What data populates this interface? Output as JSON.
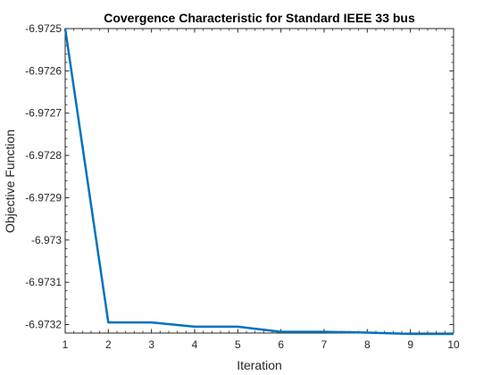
{
  "chart_data": {
    "type": "line",
    "title": "Covergence Characteristic for Standard IEEE  33 bus",
    "xlabel": "Iteration",
    "ylabel": "Objective Function",
    "xlim": [
      1,
      10
    ],
    "ylim": [
      -6.97322,
      -6.9725
    ],
    "x_ticks": [
      1,
      2,
      3,
      4,
      5,
      6,
      7,
      8,
      9,
      10
    ],
    "x_tick_labels": [
      "1",
      "2",
      "3",
      "4",
      "5",
      "6",
      "7",
      "8",
      "9",
      "10"
    ],
    "y_ticks": [
      -6.9725,
      -6.9726,
      -6.9727,
      -6.9728,
      -6.9729,
      -6.973,
      -6.9731,
      -6.9732
    ],
    "y_tick_labels": [
      "-6.9725",
      "-6.9726",
      "-6.9727",
      "-6.9728",
      "-6.9729",
      "-6.973",
      "-6.9731",
      "-6.9732"
    ],
    "grid": false,
    "box": true,
    "series": [
      {
        "color": "#0072BD",
        "x": [
          1,
          2,
          3,
          4,
          5,
          6,
          7,
          8,
          9,
          10
        ],
        "y": [
          -6.9725,
          -6.973195,
          -6.973195,
          -6.973205,
          -6.973205,
          -6.973217,
          -6.973217,
          -6.973219,
          -6.973222,
          -6.973222
        ]
      }
    ]
  }
}
